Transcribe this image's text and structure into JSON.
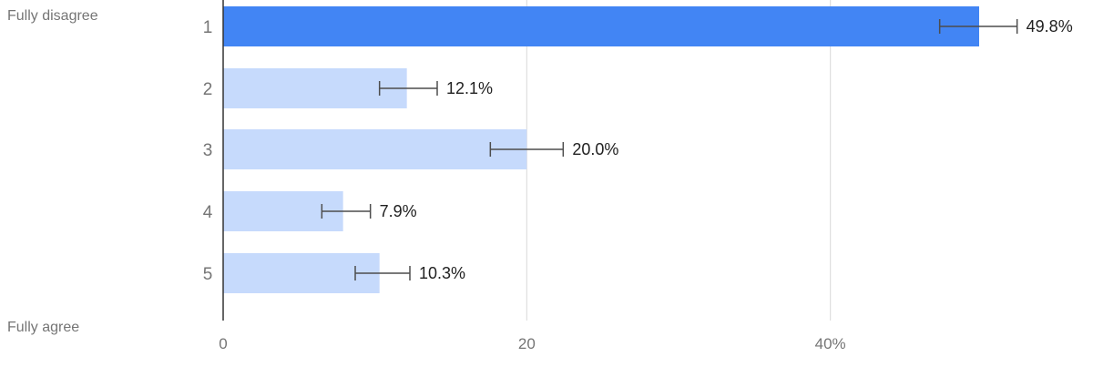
{
  "chart_data": {
    "type": "bar",
    "orientation": "horizontal",
    "categories": [
      "1",
      "2",
      "3",
      "4",
      "5"
    ],
    "values": [
      49.8,
      12.1,
      20.0,
      7.9,
      10.3
    ],
    "value_labels": [
      "49.8%",
      "12.1%",
      "20.0%",
      "7.9%",
      "10.3%"
    ],
    "error_low": [
      47.2,
      10.3,
      17.6,
      6.5,
      8.7
    ],
    "error_high": [
      52.3,
      14.1,
      22.4,
      9.7,
      12.3
    ],
    "highlighted_index": 0,
    "scale_top_label": "Fully disagree",
    "scale_bottom_label": "Fully agree",
    "xlim": [
      0,
      55.8
    ],
    "xticks": [
      0,
      20,
      40
    ],
    "xtick_labels": [
      "0",
      "20",
      "40%"
    ],
    "grid": true,
    "colors": {
      "highlight": "#4285f4",
      "bar": "#c6dafc",
      "error_bar": "#4d4d4d",
      "grid": "#d9d9d9",
      "axis": "#333333"
    }
  }
}
